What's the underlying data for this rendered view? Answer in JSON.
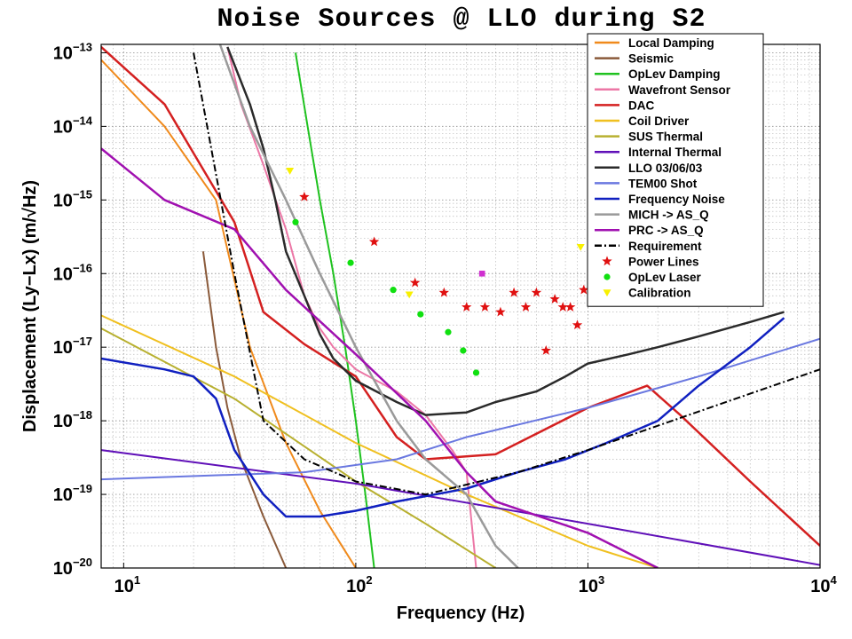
{
  "chart_data": {
    "type": "line",
    "title": "Noise Sources @ LLO during S2",
    "xlabel": "Frequency (Hz)",
    "ylabel": "Displacement (Ly−Lx) (m/√Hz)",
    "xscale": "log",
    "yscale": "log",
    "xlim": [
      8,
      10000
    ],
    "ylim": [
      1e-20,
      1.3e-13
    ],
    "grid": true,
    "legend_position": "top-right",
    "x_ticks": [
      {
        "value": 10,
        "base": "10",
        "exp": "1"
      },
      {
        "value": 100,
        "base": "10",
        "exp": "2"
      },
      {
        "value": 1000,
        "base": "10",
        "exp": "3"
      },
      {
        "value": 10000,
        "base": "10",
        "exp": "4"
      }
    ],
    "y_ticks": [
      {
        "value": 1e-13,
        "base": "10",
        "exp": "−13"
      },
      {
        "value": 1e-14,
        "base": "10",
        "exp": "−14"
      },
      {
        "value": 1e-15,
        "base": "10",
        "exp": "−15"
      },
      {
        "value": 1e-16,
        "base": "10",
        "exp": "−16"
      },
      {
        "value": 1e-17,
        "base": "10",
        "exp": "−17"
      },
      {
        "value": 1e-18,
        "base": "10",
        "exp": "−18"
      },
      {
        "value": 1e-19,
        "base": "10",
        "exp": "−19"
      },
      {
        "value": 1e-20,
        "base": "10",
        "exp": "−20"
      }
    ],
    "series": [
      {
        "name": "Local Damping",
        "color": "#f08a1c",
        "width": 2,
        "points": [
          [
            8,
            8e-14
          ],
          [
            15,
            1e-14
          ],
          [
            25,
            1e-15
          ],
          [
            35,
            1e-17
          ],
          [
            50,
            5e-19
          ],
          [
            70,
            6e-20
          ],
          [
            100,
            1e-20
          ]
        ]
      },
      {
        "name": "Seismic",
        "color": "#8a5a3a",
        "width": 2,
        "points": [
          [
            22,
            2e-16
          ],
          [
            25,
            1e-17
          ],
          [
            28,
            1.5e-18
          ],
          [
            32,
            3e-19
          ],
          [
            40,
            5e-20
          ],
          [
            50,
            1e-20
          ]
        ]
      },
      {
        "name": "OpLev Damping",
        "color": "#1fc21f",
        "width": 2,
        "points": [
          [
            55,
            1e-13
          ],
          [
            62,
            1e-14
          ],
          [
            70,
            1e-15
          ],
          [
            80,
            1e-16
          ],
          [
            90,
            1e-17
          ],
          [
            100,
            1e-18
          ],
          [
            110,
            1e-19
          ],
          [
            120,
            1e-20
          ]
        ]
      },
      {
        "name": "Wavefront Sensor",
        "color": "#ec77a6",
        "width": 2,
        "points": [
          [
            28,
            1.2e-13
          ],
          [
            32,
            2e-14
          ],
          [
            40,
            3e-15
          ],
          [
            50,
            4e-16
          ],
          [
            60,
            5e-17
          ],
          [
            70,
            1.8e-17
          ],
          [
            80,
            1e-17
          ],
          [
            100,
            5e-18
          ],
          [
            150,
            2.5e-18
          ],
          [
            200,
            1.2e-18
          ],
          [
            260,
            4e-19
          ],
          [
            300,
            2e-19
          ],
          [
            330,
            1e-20
          ]
        ]
      },
      {
        "name": "DAC",
        "color": "#d42020",
        "width": 2.5,
        "points": [
          [
            8,
            1.2e-13
          ],
          [
            15,
            2e-14
          ],
          [
            30,
            5e-16
          ],
          [
            40,
            3e-17
          ],
          [
            60,
            1.1e-17
          ],
          [
            100,
            4e-18
          ],
          [
            150,
            6e-19
          ],
          [
            200,
            3e-19
          ],
          [
            400,
            3.5e-19
          ],
          [
            1000,
            1.5e-18
          ],
          [
            1800,
            3e-18
          ],
          [
            2500,
            1.2e-18
          ],
          [
            5000,
            1.5e-19
          ],
          [
            10000,
            2e-20
          ]
        ]
      },
      {
        "name": "Coil Driver",
        "color": "#f0c020",
        "width": 2,
        "points": [
          [
            8,
            2.7e-17
          ],
          [
            30,
            4e-18
          ],
          [
            100,
            5e-19
          ],
          [
            300,
            1e-19
          ],
          [
            1000,
            2e-20
          ],
          [
            2000,
            1e-20
          ]
        ]
      },
      {
        "name": "SUS Thermal",
        "color": "#b8b030",
        "width": 2,
        "points": [
          [
            8,
            1.8e-17
          ],
          [
            30,
            2e-18
          ],
          [
            100,
            1.5e-19
          ],
          [
            200,
            4e-20
          ],
          [
            400,
            1e-20
          ]
        ]
      },
      {
        "name": "Internal Thermal",
        "color": "#6010b8",
        "width": 2,
        "points": [
          [
            8,
            4e-19
          ],
          [
            100,
            1.4e-19
          ],
          [
            1000,
            4e-20
          ],
          [
            10000,
            1.1e-20
          ]
        ]
      },
      {
        "name": "LLO 03/06/03",
        "color": "#2a2a2a",
        "width": 2.5,
        "points": [
          [
            28,
            1.2e-13
          ],
          [
            35,
            2e-14
          ],
          [
            40,
            5e-15
          ],
          [
            45,
            1e-15
          ],
          [
            50,
            2e-16
          ],
          [
            60,
            5e-17
          ],
          [
            70,
            1.5e-17
          ],
          [
            80,
            7e-18
          ],
          [
            100,
            3.5e-18
          ],
          [
            150,
            1.8e-18
          ],
          [
            200,
            1.2e-18
          ],
          [
            300,
            1.3e-18
          ],
          [
            400,
            1.8e-18
          ],
          [
            600,
            2.5e-18
          ],
          [
            800,
            4e-18
          ],
          [
            1000,
            6e-18
          ],
          [
            1500,
            8e-18
          ],
          [
            2000,
            1e-17
          ],
          [
            3000,
            1.4e-17
          ],
          [
            5000,
            2.2e-17
          ],
          [
            7000,
            3e-17
          ]
        ]
      },
      {
        "name": "TEM00 Shot",
        "color": "#6a78e0",
        "width": 2,
        "points": [
          [
            8,
            1.6e-19
          ],
          [
            60,
            2e-19
          ],
          [
            150,
            3e-19
          ],
          [
            300,
            6e-19
          ],
          [
            1000,
            1.5e-18
          ],
          [
            3000,
            4e-18
          ],
          [
            10000,
            1.3e-17
          ]
        ]
      },
      {
        "name": "Frequency Noise",
        "color": "#1020c0",
        "width": 2.5,
        "points": [
          [
            8,
            7e-18
          ],
          [
            15,
            5e-18
          ],
          [
            20,
            4e-18
          ],
          [
            25,
            2e-18
          ],
          [
            30,
            4e-19
          ],
          [
            40,
            1e-19
          ],
          [
            50,
            5e-20
          ],
          [
            70,
            5e-20
          ],
          [
            100,
            6e-20
          ],
          [
            150,
            8e-20
          ],
          [
            300,
            1.2e-19
          ],
          [
            500,
            2e-19
          ],
          [
            800,
            3e-19
          ],
          [
            1200,
            5e-19
          ],
          [
            2000,
            1e-18
          ],
          [
            3000,
            3e-18
          ],
          [
            5000,
            1e-17
          ],
          [
            7000,
            2.5e-17
          ]
        ]
      },
      {
        "name": "MICH -> AS_Q",
        "color": "#9a9a9a",
        "width": 2.5,
        "points": [
          [
            26,
            1.3e-13
          ],
          [
            35,
            1e-14
          ],
          [
            50,
            1e-15
          ],
          [
            70,
            1e-16
          ],
          [
            100,
            1e-17
          ],
          [
            150,
            1e-18
          ],
          [
            200,
            3e-19
          ],
          [
            300,
            1e-19
          ],
          [
            400,
            2e-20
          ],
          [
            500,
            1e-20
          ]
        ]
      },
      {
        "name": "PRC -> AS_Q",
        "color": "#a010b0",
        "width": 2.5,
        "points": [
          [
            8,
            5e-15
          ],
          [
            15,
            1e-15
          ],
          [
            30,
            4e-16
          ],
          [
            50,
            6e-17
          ],
          [
            100,
            8e-18
          ],
          [
            200,
            1e-18
          ],
          [
            300,
            2e-19
          ],
          [
            400,
            8e-20
          ],
          [
            1000,
            3e-20
          ],
          [
            2000,
            1e-20
          ]
        ]
      },
      {
        "name": "Requirement",
        "color": "#000000",
        "width": 2,
        "dash": "8,3,2,3",
        "points": [
          [
            20,
            1e-13
          ],
          [
            30,
            1e-16
          ],
          [
            40,
            1e-18
          ],
          [
            60,
            3e-19
          ],
          [
            100,
            1.5e-19
          ],
          [
            200,
            1e-19
          ],
          [
            500,
            2e-19
          ],
          [
            1000,
            4e-19
          ],
          [
            10000,
            5e-18
          ]
        ]
      }
    ],
    "markers": [
      {
        "name": "Power Lines",
        "symbol": "star",
        "color": "#e01010",
        "points": [
          [
            60,
            1.1e-15
          ],
          [
            120,
            2.7e-16
          ],
          [
            180,
            7.5e-17
          ],
          [
            240,
            5.5e-17
          ],
          [
            300,
            3.5e-17
          ],
          [
            360,
            3.5e-17
          ],
          [
            420,
            3e-17
          ],
          [
            480,
            5.5e-17
          ],
          [
            540,
            3.5e-17
          ],
          [
            600,
            5.5e-17
          ],
          [
            660,
            9e-18
          ],
          [
            720,
            4.5e-17
          ],
          [
            780,
            3.5e-17
          ],
          [
            840,
            3.5e-17
          ],
          [
            900,
            2e-17
          ],
          [
            960,
            6e-17
          ]
        ]
      },
      {
        "name": "OpLev Laser",
        "symbol": "dot",
        "color": "#10e010",
        "points": [
          [
            55,
            5e-16
          ],
          [
            95,
            1.4e-16
          ],
          [
            145,
            6e-17
          ],
          [
            190,
            2.8e-17
          ],
          [
            250,
            1.6e-17
          ],
          [
            290,
            9e-18
          ],
          [
            330,
            4.5e-18
          ]
        ]
      },
      {
        "name": "Calibration",
        "symbol": "triangle",
        "color": "#f8f000",
        "points": [
          [
            52,
            2.5e-15
          ],
          [
            170,
            5.2e-17
          ],
          [
            930,
            2.3e-16
          ]
        ]
      },
      {
        "name": "",
        "symbol": "square",
        "color": "#d030d0",
        "points": [
          [
            350,
            1e-16
          ]
        ]
      }
    ]
  }
}
